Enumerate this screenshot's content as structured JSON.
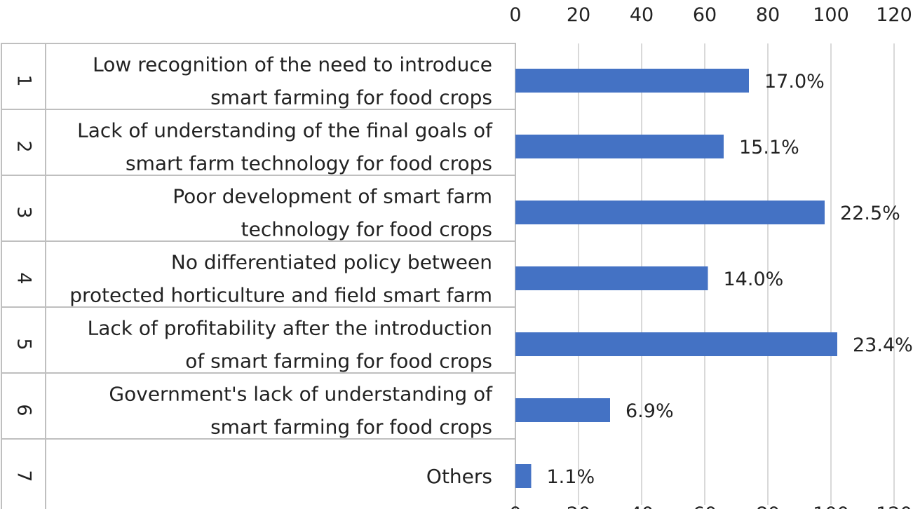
{
  "chart_data": {
    "type": "bar",
    "orientation": "horizontal",
    "title": "",
    "xlabel": "",
    "ylabel": "",
    "xlim": [
      0,
      120
    ],
    "x_ticks": [
      "0",
      "20",
      "40",
      "60",
      "80",
      "100",
      "120"
    ],
    "tick_positions": [
      "top",
      "bottom"
    ],
    "grid": true,
    "legend": "none",
    "bar_color": "#4472c4",
    "categories": [
      {
        "number": "1",
        "lines": [
          "Low recognition of the need to introduce",
          "smart farming for food crops"
        ],
        "value": 74,
        "label": "17.0%"
      },
      {
        "number": "2",
        "lines": [
          "Lack of understanding of the final goals of",
          "smart farm technology for food crops"
        ],
        "value": 66,
        "label": "15.1%"
      },
      {
        "number": "3",
        "lines": [
          "Poor development of smart farm",
          "technology for food crops"
        ],
        "value": 98,
        "label": "22.5%"
      },
      {
        "number": "4",
        "lines": [
          "No differentiated policy between",
          "protected horticulture and field smart farm"
        ],
        "value": 61,
        "label": "14.0%"
      },
      {
        "number": "5",
        "lines": [
          "Lack of profitability after the introduction",
          "of smart farming for food crops"
        ],
        "value": 102,
        "label": "23.4%"
      },
      {
        "number": "6",
        "lines": [
          "Government's lack of understanding of",
          "smart farming for food crops"
        ],
        "value": 30,
        "label": "6.9%"
      },
      {
        "number": "7",
        "lines": [
          "Others"
        ],
        "value": 5,
        "label": "1.1%"
      }
    ]
  }
}
